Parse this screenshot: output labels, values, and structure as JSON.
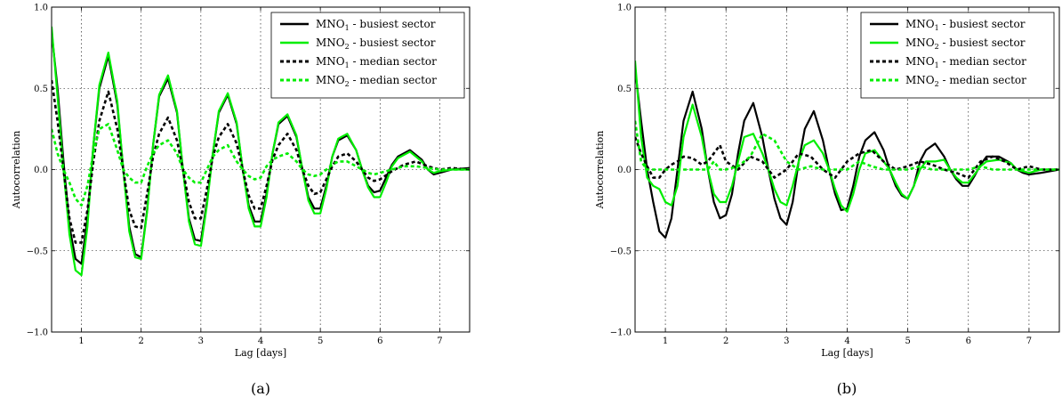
{
  "chart_data": [
    {
      "type": "line",
      "panel_label": "(a)",
      "xlabel": "Lag [days]",
      "ylabel": "Autocorrelation",
      "xlim": [
        0.5,
        7.5
      ],
      "ylim": [
        -1.0,
        1.0
      ],
      "xticks": [
        "1",
        "2",
        "3",
        "4",
        "5",
        "6",
        "7"
      ],
      "yticks": [
        "-1.0",
        "-0.5",
        "0.0",
        "0.5",
        "1.0"
      ],
      "grid": true,
      "legend_position": "top-right",
      "series": [
        {
          "name": "MNO1 - busiest sector",
          "name_base": "MNO",
          "name_sub": "1",
          "name_rest": " - busiest sector",
          "color": "#000000",
          "dash": "solid",
          "width": 2.2,
          "x": [
            0.5,
            0.6,
            0.7,
            0.8,
            0.9,
            1.0,
            1.1,
            1.2,
            1.3,
            1.45,
            1.6,
            1.7,
            1.8,
            1.9,
            2.0,
            2.1,
            2.2,
            2.3,
            2.45,
            2.6,
            2.7,
            2.8,
            2.9,
            3.0,
            3.1,
            3.2,
            3.3,
            3.45,
            3.6,
            3.7,
            3.8,
            3.9,
            4.0,
            4.1,
            4.2,
            4.3,
            4.45,
            4.6,
            4.7,
            4.8,
            4.9,
            5.0,
            5.1,
            5.2,
            5.3,
            5.45,
            5.6,
            5.7,
            5.8,
            5.9,
            6.0,
            6.1,
            6.2,
            6.3,
            6.5,
            6.7,
            6.8,
            6.9,
            7.0,
            7.2,
            7.5
          ],
          "y": [
            0.85,
            0.5,
            0.05,
            -0.35,
            -0.55,
            -0.58,
            -0.3,
            0.15,
            0.5,
            0.7,
            0.4,
            0.0,
            -0.35,
            -0.52,
            -0.54,
            -0.25,
            0.15,
            0.45,
            0.56,
            0.35,
            0.0,
            -0.3,
            -0.43,
            -0.44,
            -0.2,
            0.1,
            0.35,
            0.46,
            0.28,
            0.0,
            -0.22,
            -0.32,
            -0.32,
            -0.15,
            0.1,
            0.28,
            0.33,
            0.2,
            0.0,
            -0.17,
            -0.24,
            -0.24,
            -0.1,
            0.08,
            0.18,
            0.21,
            0.12,
            0.0,
            -0.1,
            -0.14,
            -0.13,
            -0.05,
            0.03,
            0.08,
            0.12,
            0.06,
            0.0,
            -0.03,
            -0.02,
            0.0,
            0.01
          ]
        },
        {
          "name": "MNO2 - busiest sector",
          "name_base": "MNO",
          "name_sub": "2",
          "name_rest": " - busiest sector",
          "color": "#00ee00",
          "dash": "solid",
          "width": 2.2,
          "x": [
            0.5,
            0.6,
            0.7,
            0.8,
            0.9,
            1.0,
            1.1,
            1.2,
            1.3,
            1.45,
            1.6,
            1.7,
            1.8,
            1.9,
            2.0,
            2.1,
            2.2,
            2.3,
            2.45,
            2.6,
            2.7,
            2.8,
            2.9,
            3.0,
            3.1,
            3.2,
            3.3,
            3.45,
            3.6,
            3.7,
            3.8,
            3.9,
            4.0,
            4.1,
            4.2,
            4.3,
            4.45,
            4.6,
            4.7,
            4.8,
            4.9,
            5.0,
            5.1,
            5.2,
            5.3,
            5.45,
            5.6,
            5.7,
            5.8,
            5.9,
            6.0,
            6.1,
            6.2,
            6.3,
            6.5,
            6.7,
            6.8,
            6.9,
            7.0,
            7.2,
            7.5
          ],
          "y": [
            0.88,
            0.45,
            0.0,
            -0.4,
            -0.62,
            -0.65,
            -0.35,
            0.15,
            0.52,
            0.72,
            0.42,
            0.0,
            -0.38,
            -0.54,
            -0.55,
            -0.26,
            0.15,
            0.46,
            0.58,
            0.36,
            0.0,
            -0.32,
            -0.46,
            -0.47,
            -0.22,
            0.1,
            0.36,
            0.47,
            0.29,
            0.0,
            -0.24,
            -0.35,
            -0.35,
            -0.17,
            0.1,
            0.29,
            0.34,
            0.21,
            0.0,
            -0.19,
            -0.27,
            -0.27,
            -0.12,
            0.08,
            0.19,
            0.22,
            0.12,
            0.0,
            -0.11,
            -0.17,
            -0.17,
            -0.08,
            0.02,
            0.07,
            0.11,
            0.05,
            0.0,
            -0.02,
            -0.01,
            0.0,
            0.0
          ]
        },
        {
          "name": "MNO1 - median sector",
          "name_base": "MNO",
          "name_sub": "1",
          "name_rest": " - median sector",
          "color": "#000000",
          "dash": "dashed",
          "width": 2.6,
          "x": [
            0.5,
            0.6,
            0.7,
            0.8,
            0.9,
            1.0,
            1.1,
            1.2,
            1.3,
            1.45,
            1.6,
            1.7,
            1.8,
            1.9,
            2.0,
            2.1,
            2.2,
            2.3,
            2.45,
            2.6,
            2.7,
            2.8,
            2.9,
            3.0,
            3.1,
            3.2,
            3.3,
            3.45,
            3.6,
            3.7,
            3.8,
            3.9,
            4.0,
            4.1,
            4.2,
            4.3,
            4.45,
            4.6,
            4.7,
            4.8,
            4.9,
            5.0,
            5.1,
            5.2,
            5.3,
            5.45,
            5.6,
            5.7,
            5.8,
            5.9,
            6.0,
            6.2,
            6.4,
            6.6,
            6.8,
            7.0,
            7.2,
            7.5
          ],
          "y": [
            0.55,
            0.3,
            0.0,
            -0.3,
            -0.45,
            -0.45,
            -0.25,
            0.05,
            0.3,
            0.48,
            0.25,
            0.0,
            -0.25,
            -0.35,
            -0.36,
            -0.15,
            0.08,
            0.22,
            0.32,
            0.18,
            0.0,
            -0.2,
            -0.3,
            -0.3,
            -0.12,
            0.08,
            0.2,
            0.28,
            0.16,
            0.0,
            -0.16,
            -0.24,
            -0.24,
            -0.1,
            0.06,
            0.15,
            0.22,
            0.12,
            0.0,
            -0.1,
            -0.15,
            -0.14,
            -0.06,
            0.02,
            0.08,
            0.1,
            0.05,
            0.0,
            -0.05,
            -0.07,
            -0.06,
            -0.01,
            0.03,
            0.05,
            0.02,
            0.0,
            0.01,
            0.0
          ]
        },
        {
          "name": "MNO2 - median sector",
          "name_base": "MNO",
          "name_sub": "2",
          "name_rest": " - median sector",
          "color": "#00ee00",
          "dash": "dashed",
          "width": 2.6,
          "x": [
            0.5,
            0.6,
            0.7,
            0.8,
            0.9,
            1.0,
            1.1,
            1.2,
            1.3,
            1.45,
            1.6,
            1.7,
            1.8,
            1.9,
            2.0,
            2.1,
            2.2,
            2.3,
            2.45,
            2.6,
            2.7,
            2.8,
            2.9,
            3.0,
            3.1,
            3.2,
            3.3,
            3.45,
            3.6,
            3.7,
            3.8,
            3.9,
            4.0,
            4.1,
            4.2,
            4.3,
            4.45,
            4.6,
            4.7,
            4.8,
            4.9,
            5.0,
            5.1,
            5.2,
            5.3,
            5.45,
            5.6,
            5.7,
            5.8,
            5.9,
            6.0,
            6.2,
            6.4,
            6.6,
            6.8,
            7.0,
            7.2,
            7.5
          ],
          "y": [
            0.25,
            0.1,
            0.0,
            -0.08,
            -0.18,
            -0.22,
            -0.1,
            0.1,
            0.25,
            0.28,
            0.12,
            0.0,
            -0.05,
            -0.08,
            -0.08,
            0.02,
            0.1,
            0.15,
            0.18,
            0.1,
            0.0,
            -0.05,
            -0.08,
            -0.08,
            0.0,
            0.08,
            0.12,
            0.15,
            0.05,
            0.0,
            -0.04,
            -0.06,
            -0.05,
            0.02,
            0.06,
            0.08,
            0.1,
            0.05,
            0.0,
            -0.03,
            -0.04,
            -0.03,
            0.0,
            0.03,
            0.05,
            0.05,
            0.02,
            0.0,
            -0.02,
            -0.03,
            -0.02,
            0.0,
            0.02,
            0.02,
            0.01,
            0.0,
            0.0,
            0.0
          ]
        }
      ]
    },
    {
      "type": "line",
      "panel_label": "(b)",
      "xlabel": "Lag [days]",
      "ylabel": "Autocorrelation",
      "xlim": [
        0.5,
        7.5
      ],
      "ylim": [
        -1.0,
        1.0
      ],
      "xticks": [
        "1",
        "2",
        "3",
        "4",
        "5",
        "6",
        "7"
      ],
      "yticks": [
        "-1.0",
        "-0.5",
        "0.0",
        "0.5",
        "1.0"
      ],
      "grid": true,
      "legend_position": "top-right",
      "series": [
        {
          "name": "MNO1 - busiest sector",
          "name_base": "MNO",
          "name_sub": "1",
          "name_rest": " - busiest sector",
          "color": "#000000",
          "dash": "solid",
          "width": 2.2,
          "x": [
            0.5,
            0.6,
            0.7,
            0.8,
            0.9,
            1.0,
            1.1,
            1.2,
            1.3,
            1.45,
            1.6,
            1.7,
            1.8,
            1.9,
            2.0,
            2.1,
            2.2,
            2.3,
            2.45,
            2.6,
            2.7,
            2.8,
            2.9,
            3.0,
            3.1,
            3.2,
            3.3,
            3.45,
            3.6,
            3.7,
            3.8,
            3.9,
            4.0,
            4.1,
            4.2,
            4.3,
            4.45,
            4.6,
            4.7,
            4.8,
            4.9,
            5.0,
            5.1,
            5.2,
            5.3,
            5.45,
            5.6,
            5.7,
            5.8,
            5.9,
            6.0,
            6.1,
            6.2,
            6.3,
            6.5,
            6.7,
            6.8,
            6.9,
            7.0,
            7.2,
            7.5
          ],
          "y": [
            0.62,
            0.3,
            0.0,
            -0.2,
            -0.38,
            -0.42,
            -0.3,
            0.0,
            0.3,
            0.48,
            0.25,
            0.0,
            -0.2,
            -0.3,
            -0.28,
            -0.15,
            0.1,
            0.3,
            0.41,
            0.2,
            0.0,
            -0.18,
            -0.3,
            -0.34,
            -0.2,
            0.05,
            0.25,
            0.36,
            0.18,
            0.0,
            -0.15,
            -0.25,
            -0.24,
            -0.1,
            0.08,
            0.18,
            0.23,
            0.12,
            0.0,
            -0.1,
            -0.16,
            -0.18,
            -0.1,
            0.05,
            0.12,
            0.16,
            0.08,
            0.0,
            -0.06,
            -0.1,
            -0.1,
            -0.04,
            0.03,
            0.08,
            0.08,
            0.04,
            0.0,
            -0.02,
            -0.03,
            -0.02,
            0.0
          ]
        },
        {
          "name": "MNO2 - busiest sector",
          "name_base": "MNO",
          "name_sub": "2",
          "name_rest": " - busiest sector",
          "color": "#00ee00",
          "dash": "solid",
          "width": 2.2,
          "x": [
            0.5,
            0.6,
            0.7,
            0.8,
            0.9,
            1.0,
            1.1,
            1.2,
            1.3,
            1.45,
            1.6,
            1.7,
            1.8,
            1.9,
            2.0,
            2.1,
            2.2,
            2.3,
            2.45,
            2.6,
            2.7,
            2.8,
            2.9,
            3.0,
            3.1,
            3.2,
            3.3,
            3.45,
            3.6,
            3.7,
            3.8,
            3.9,
            4.0,
            4.1,
            4.2,
            4.3,
            4.45,
            4.6,
            4.7,
            4.8,
            4.9,
            5.0,
            5.1,
            5.2,
            5.3,
            5.45,
            5.6,
            5.7,
            5.8,
            5.9,
            6.0,
            6.1,
            6.2,
            6.3,
            6.5,
            6.7,
            6.8,
            6.9,
            7.0,
            7.2,
            7.5
          ],
          "y": [
            0.67,
            0.2,
            -0.05,
            -0.1,
            -0.12,
            -0.2,
            -0.22,
            -0.1,
            0.2,
            0.4,
            0.2,
            0.0,
            -0.15,
            -0.2,
            -0.2,
            -0.1,
            0.05,
            0.2,
            0.22,
            0.1,
            0.0,
            -0.12,
            -0.2,
            -0.22,
            -0.1,
            0.05,
            0.15,
            0.18,
            0.1,
            0.0,
            -0.12,
            -0.22,
            -0.26,
            -0.15,
            0.0,
            0.1,
            0.12,
            0.05,
            0.0,
            -0.08,
            -0.15,
            -0.18,
            -0.1,
            0.0,
            0.05,
            0.05,
            0.06,
            0.0,
            -0.05,
            -0.08,
            -0.08,
            -0.03,
            0.02,
            0.05,
            0.06,
            0.04,
            0.0,
            -0.01,
            -0.02,
            0.0,
            0.0
          ]
        },
        {
          "name": "MNO1 - median sector",
          "name_base": "MNO",
          "name_sub": "1",
          "name_rest": " - median sector",
          "color": "#000000",
          "dash": "dashed",
          "width": 2.6,
          "x": [
            0.5,
            0.6,
            0.7,
            0.8,
            0.9,
            1.0,
            1.1,
            1.2,
            1.3,
            1.45,
            1.6,
            1.7,
            1.8,
            1.9,
            2.0,
            2.2,
            2.4,
            2.6,
            2.8,
            3.0,
            3.2,
            3.4,
            3.6,
            3.8,
            4.0,
            4.2,
            4.4,
            4.6,
            4.8,
            5.0,
            5.2,
            5.4,
            5.6,
            5.8,
            6.0,
            6.2,
            6.4,
            6.6,
            6.8,
            7.0,
            7.2,
            7.5
          ],
          "y": [
            0.2,
            0.1,
            0.02,
            -0.05,
            -0.05,
            0.0,
            0.03,
            0.05,
            0.08,
            0.07,
            0.03,
            0.05,
            0.1,
            0.15,
            0.05,
            0.0,
            0.08,
            0.05,
            -0.05,
            0.0,
            0.1,
            0.08,
            0.0,
            -0.05,
            0.05,
            0.1,
            0.12,
            0.05,
            0.0,
            0.02,
            0.05,
            0.03,
            0.0,
            -0.02,
            -0.05,
            0.05,
            0.08,
            0.05,
            0.0,
            0.02,
            0.0,
            0.0
          ]
        },
        {
          "name": "MNO2 - median sector",
          "name_base": "MNO",
          "name_sub": "2",
          "name_rest": " - median sector",
          "color": "#00ee00",
          "dash": "dashed",
          "width": 2.6,
          "x": [
            0.5,
            0.6,
            0.7,
            0.8,
            0.9,
            1.0,
            1.1,
            1.2,
            1.3,
            1.45,
            1.6,
            1.7,
            1.8,
            1.9,
            2.0,
            2.2,
            2.4,
            2.6,
            2.8,
            3.0,
            3.2,
            3.4,
            3.6,
            3.8,
            4.0,
            4.2,
            4.4,
            4.6,
            4.8,
            5.0,
            5.2,
            5.4,
            5.6,
            5.8,
            6.0,
            6.2,
            6.4,
            6.6,
            6.8,
            7.0,
            7.2,
            7.5
          ],
          "y": [
            0.3,
            0.05,
            0.0,
            0.0,
            0.0,
            0.0,
            0.0,
            0.0,
            0.0,
            0.0,
            0.0,
            0.0,
            0.05,
            0.0,
            0.0,
            0.02,
            0.08,
            0.22,
            0.18,
            0.05,
            0.0,
            0.02,
            0.0,
            0.0,
            0.0,
            0.05,
            0.02,
            0.0,
            0.0,
            0.0,
            0.02,
            0.0,
            0.0,
            0.0,
            0.0,
            0.02,
            0.0,
            0.0,
            0.0,
            0.0,
            0.0,
            0.0
          ]
        }
      ]
    }
  ]
}
